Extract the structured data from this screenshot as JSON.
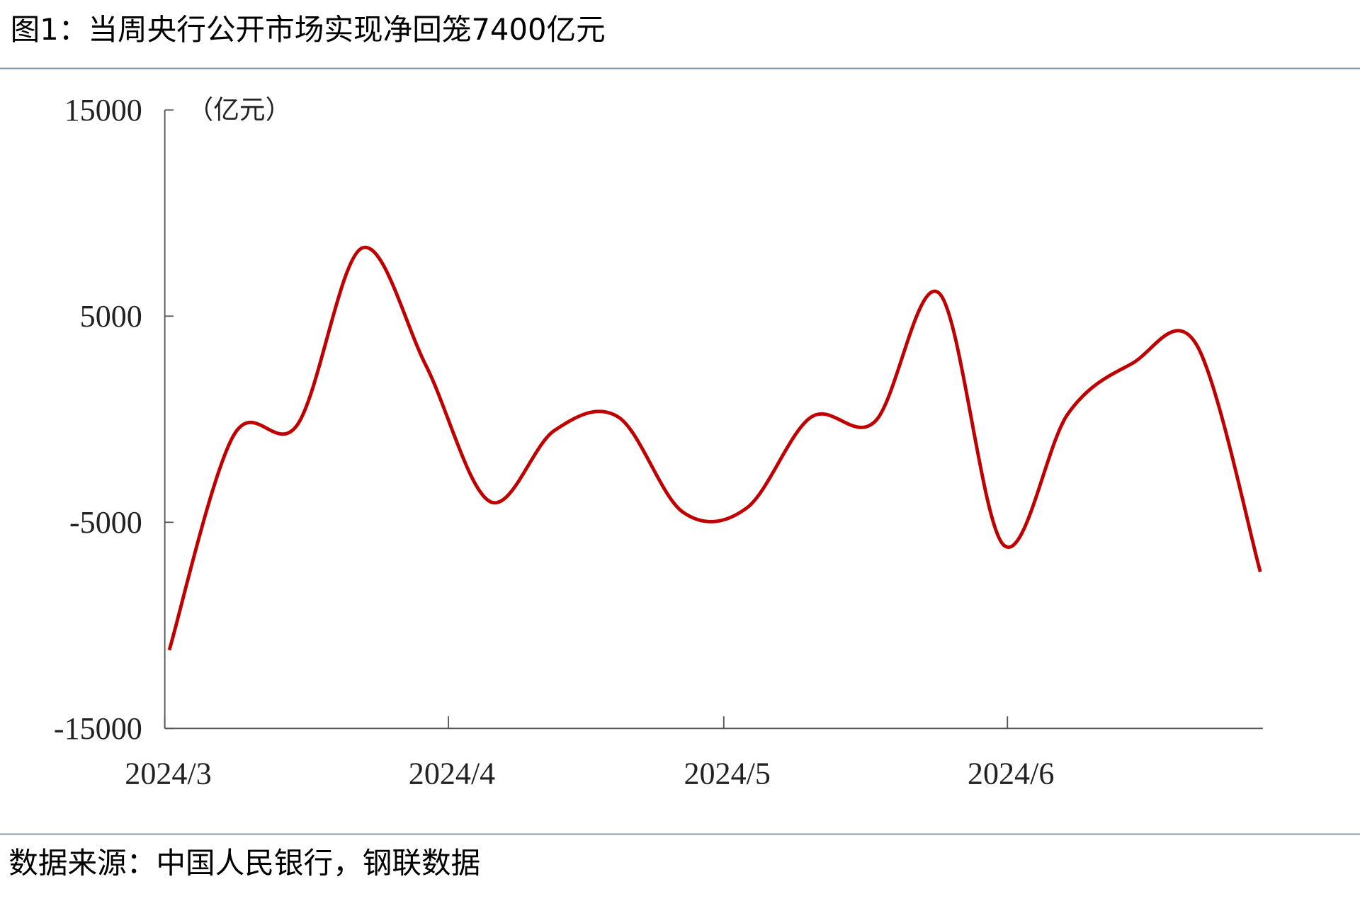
{
  "chart_data": {
    "type": "line",
    "title": "图1：当周央行公开市场实现净回笼7400亿元",
    "y_unit": "（亿元）",
    "source": "数据来源：中国人民银行，钢联数据",
    "x": [
      0,
      1,
      2,
      3,
      4,
      5,
      6,
      7,
      8,
      9,
      10,
      11,
      12,
      13,
      14,
      15,
      16,
      17
    ],
    "xlim": [
      -0.07,
      17.04
    ],
    "xticks": [
      {
        "value": -0.07,
        "label": "2024/3"
      },
      {
        "value": 4.35,
        "label": "2024/4"
      },
      {
        "value": 8.64,
        "label": "2024/5"
      },
      {
        "value": 13.06,
        "label": "2024/6"
      }
    ],
    "series": [
      {
        "color": "#c00000",
        "values": [
          -11200,
          -800,
          -250,
          8300,
          2600,
          -4000,
          -550,
          100,
          -4500,
          -4300,
          100,
          -100,
          6100,
          -6100,
          250,
          2700,
          3650,
          -7400
        ]
      }
    ],
    "ylim": [
      -15000,
      15000
    ],
    "yticks": [
      -15000,
      -5000,
      5000,
      15000
    ]
  }
}
